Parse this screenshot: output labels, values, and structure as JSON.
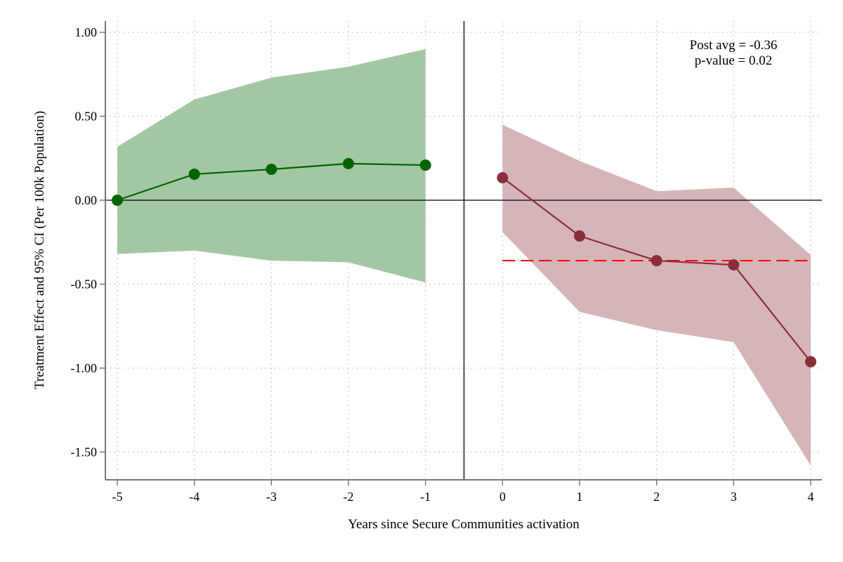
{
  "chart_data": {
    "type": "line",
    "xlabel": "Years since Secure Communities activation",
    "ylabel": "Treatment Effect and 95% CI (Per 100k Population)",
    "xlim": [
      -5.15,
      4.15
    ],
    "ylim": [
      -1.66,
      1.1
    ],
    "xticks": [
      -5,
      -4,
      -3,
      -2,
      -1,
      0,
      1,
      2,
      3,
      4
    ],
    "xtick_labels": [
      "-5",
      "-4",
      "-3",
      "-2",
      "-1",
      "0",
      "1",
      "2",
      "3",
      "4"
    ],
    "yticks": [
      1.0,
      0.5,
      0.0,
      -0.5,
      -1.0,
      -1.5
    ],
    "ytick_labels": [
      "1.00",
      "0.50",
      "0.00",
      "-0.50",
      "-1.00",
      "-1.50"
    ],
    "grid": true,
    "reference_lines": {
      "vertical_x": -0.5,
      "horizontal_y": 0,
      "post_avg_y": -0.36
    },
    "series": [
      {
        "period": "pre",
        "color": "#006400",
        "band_color": "#a3c7a3",
        "x": [
          -5,
          -4,
          -3,
          -2,
          -1
        ],
        "y": [
          0.0,
          0.155,
          0.184,
          0.218,
          0.209
        ],
        "ci_upper": [
          0.318,
          0.6,
          0.73,
          0.795,
          0.9
        ],
        "ci_lower": [
          -0.32,
          -0.3,
          -0.36,
          -0.37,
          -0.49
        ]
      },
      {
        "period": "post",
        "color": "#8b2e3a",
        "band_color": "#d5b5b8",
        "x": [
          0,
          1,
          2,
          3,
          4
        ],
        "y": [
          0.134,
          -0.213,
          -0.36,
          -0.385,
          -0.962
        ],
        "ci_upper": [
          0.45,
          0.234,
          0.054,
          0.075,
          -0.326
        ],
        "ci_lower": [
          -0.19,
          -0.665,
          -0.774,
          -0.845,
          -1.58
        ]
      }
    ],
    "post_avg_color": "#ff0000",
    "annotations": [
      "Post avg = -0.36",
      "p-value = 0.02"
    ]
  }
}
